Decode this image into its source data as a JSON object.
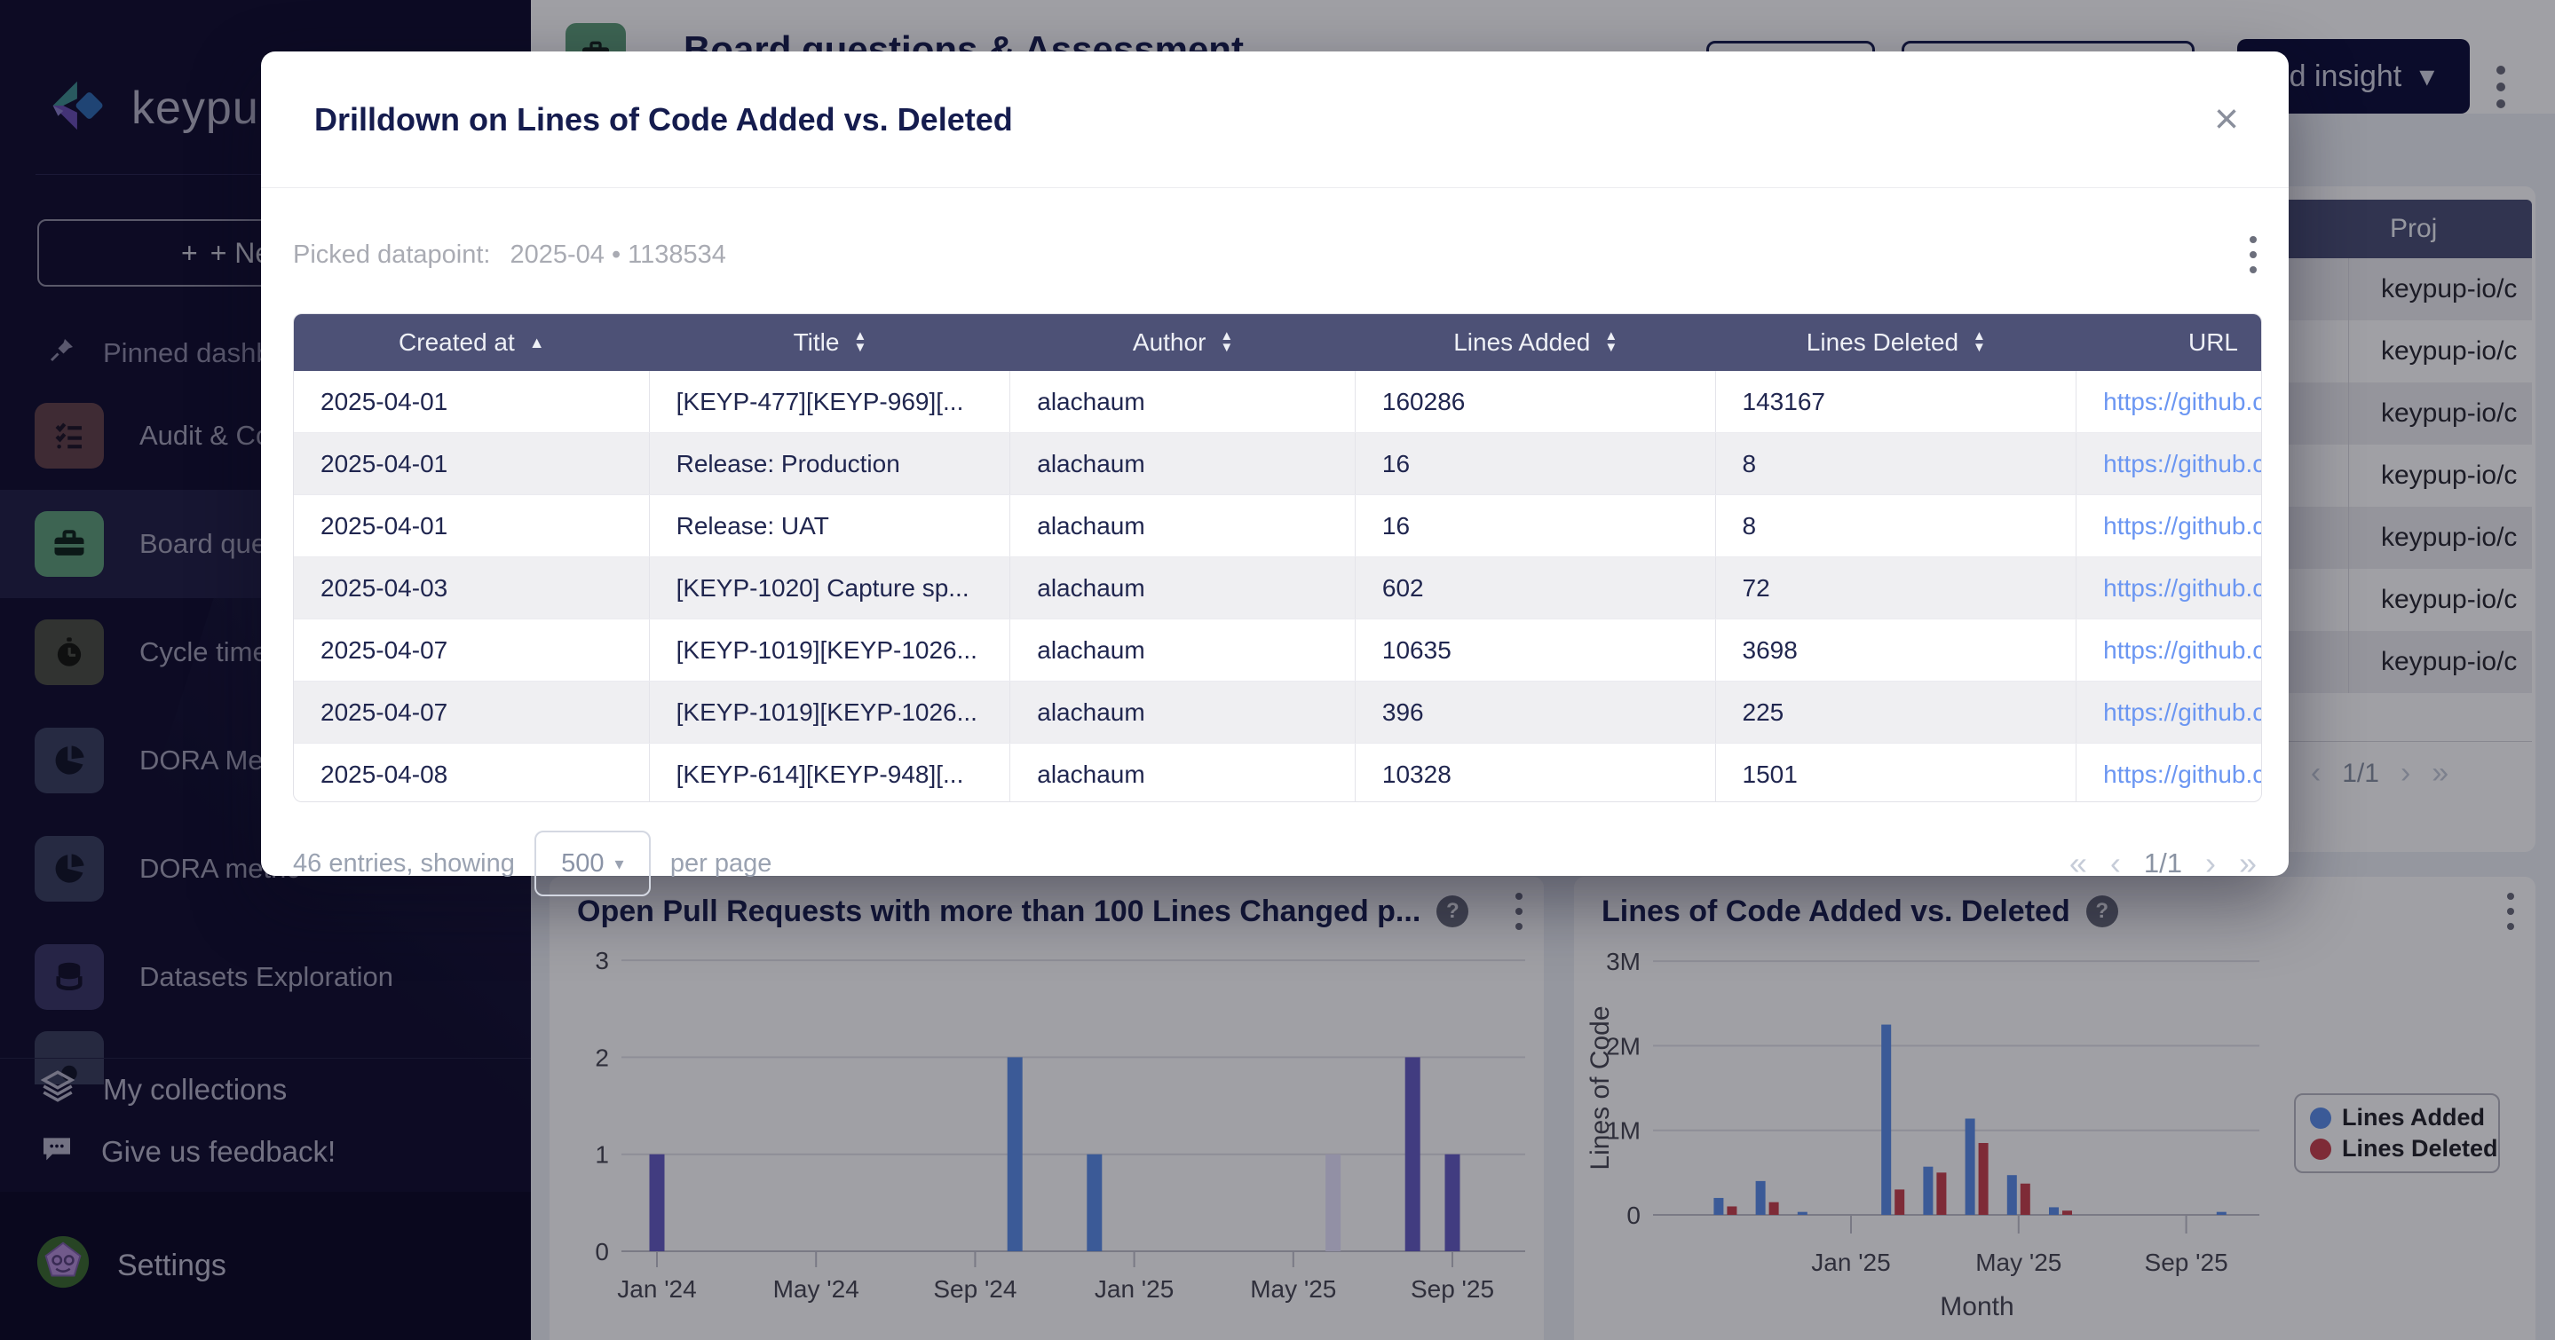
{
  "colors": {
    "accent_navy": "#10113a",
    "table_header": "#4d5176",
    "selected_green": "#5f9e79",
    "link_blue": "#6b96f2",
    "bar_indigo": "#675ec4",
    "bar_blue": "#5c8fe8",
    "bar_lavender": "#e8e5ff",
    "bar_red": "#c8434e"
  },
  "sidebar": {
    "logo_text": "keypup",
    "new_dashboard_label": "+ New d",
    "pinned_label": "Pinned dashboa",
    "items": [
      {
        "label": "Audit & Com",
        "icon": "checklist-icon",
        "icon_bg": "#63434a",
        "selected": false
      },
      {
        "label": "Board quest",
        "icon": "briefcase-icon",
        "icon_bg": "#5f9e79",
        "selected": true
      },
      {
        "label": "Cycle time d",
        "icon": "stopwatch-icon",
        "icon_bg": "#4c5045",
        "selected": false
      },
      {
        "label": "DORA Metric",
        "icon": "pie-icon",
        "icon_bg": "#3a4260",
        "selected": false
      },
      {
        "label": "DORA metric",
        "icon": "pie-icon",
        "icon_bg": "#3a4260",
        "selected": false
      },
      {
        "label": "Datasets Exploration",
        "icon": "database-icon",
        "icon_bg": "#3b3866",
        "selected": false
      },
      {
        "label": "",
        "icon": "dot-icon",
        "icon_bg": "#3a3f5c",
        "selected": false,
        "partial": true
      }
    ],
    "footer_items": [
      {
        "label": "My collections",
        "icon": "layers-icon"
      },
      {
        "label": "Give us feedback!",
        "icon": "speech-icon"
      }
    ],
    "settings_label": "Settings"
  },
  "header": {
    "title": "Board questions & Assessment",
    "add_insight_label": "dd insight",
    "add_insight_caret": "▾"
  },
  "background": {
    "project_table": {
      "header": "Proj",
      "rows": [
        "keypup-io/c",
        "keypup-io/c",
        "keypup-io/c",
        "keypup-io/c",
        "keypup-io/c",
        "keypup-io/c",
        "keypup-io/c"
      ],
      "pagination": {
        "first": "«",
        "prev": "‹",
        "page": "1/1",
        "next": "›",
        "last": "»"
      }
    }
  },
  "modal": {
    "title": "Drilldown on Lines of Code Added vs. Deleted",
    "close_glyph": "×",
    "picked_label": "Picked datapoint:",
    "picked_value": "2025-04 • 1138534",
    "table": {
      "columns": [
        {
          "label": "Created at",
          "sort": "asc"
        },
        {
          "label": "Title",
          "sort": "both"
        },
        {
          "label": "Author",
          "sort": "both"
        },
        {
          "label": "Lines Added",
          "sort": "both"
        },
        {
          "label": "Lines Deleted",
          "sort": "both"
        },
        {
          "label": "URL",
          "sort": "none"
        }
      ],
      "rows": [
        {
          "created": "2025-04-01",
          "title": "[KEYP-477][KEYP-969][...",
          "author": "alachaum",
          "added": "160286",
          "deleted": "143167",
          "url": "https://github.c"
        },
        {
          "created": "2025-04-01",
          "title": "Release: Production",
          "author": "alachaum",
          "added": "16",
          "deleted": "8",
          "url": "https://github.c"
        },
        {
          "created": "2025-04-01",
          "title": "Release: UAT",
          "author": "alachaum",
          "added": "16",
          "deleted": "8",
          "url": "https://github.c"
        },
        {
          "created": "2025-04-03",
          "title": "[KEYP-1020] Capture sp...",
          "author": "alachaum",
          "added": "602",
          "deleted": "72",
          "url": "https://github.c"
        },
        {
          "created": "2025-04-07",
          "title": "[KEYP-1019][KEYP-1026...",
          "author": "alachaum",
          "added": "10635",
          "deleted": "3698",
          "url": "https://github.c"
        },
        {
          "created": "2025-04-07",
          "title": "[KEYP-1019][KEYP-1026...",
          "author": "alachaum",
          "added": "396",
          "deleted": "225",
          "url": "https://github.c"
        },
        {
          "created": "2025-04-08",
          "title": "[KEYP-614][KEYP-948][...",
          "author": "alachaum",
          "added": "10328",
          "deleted": "1501",
          "url": "https://github.c"
        }
      ]
    },
    "footer": {
      "entries_text": "46 entries, showing",
      "page_size": "500",
      "per_page_text": "per page",
      "pagination": {
        "first": "«",
        "prev": "‹",
        "page": "1/1",
        "next": "›",
        "last": "»"
      }
    }
  },
  "chart_data": [
    {
      "type": "bar",
      "title": "Open Pull Requests with more than 100 Lines Changed p...",
      "xlabel": "",
      "ylabel": "",
      "ylim": [
        0,
        3
      ],
      "y_ticks": [
        0,
        1,
        2,
        3
      ],
      "x_ticks": [
        {
          "label": "Jan '24",
          "m": 0
        },
        {
          "label": "May '24",
          "m": 4
        },
        {
          "label": "Sep '24",
          "m": 8
        },
        {
          "label": "Jan '25",
          "m": 12
        },
        {
          "label": "May '25",
          "m": 16
        },
        {
          "label": "Sep '25",
          "m": 20
        }
      ],
      "bars": [
        {
          "month": "Jan '24",
          "m": 0,
          "value": 1,
          "color": "bar_indigo"
        },
        {
          "month": "Oct '24",
          "m": 9,
          "value": 2,
          "color": "bar_blue"
        },
        {
          "month": "Dec '24",
          "m": 11,
          "value": 1,
          "color": "bar_blue"
        },
        {
          "month": "Jun '25",
          "m": 17,
          "value": 1,
          "color": "bar_lavender"
        },
        {
          "month": "Aug '25",
          "m": 19,
          "value": 2,
          "color": "bar_indigo"
        },
        {
          "month": "Sep '25",
          "m": 20,
          "value": 1,
          "color": "bar_indigo"
        }
      ]
    },
    {
      "type": "bar",
      "title": "Lines of Code Added vs. Deleted",
      "xlabel": "Month",
      "ylabel": "Lines of Code",
      "ylim": [
        0,
        3000000
      ],
      "y_ticks": [
        {
          "label": "0",
          "v": 0
        },
        {
          "label": "1M",
          "v": 1000000
        },
        {
          "label": "2M",
          "v": 2000000
        },
        {
          "label": "3M",
          "v": 3000000
        }
      ],
      "x_ticks": [
        {
          "label": "Jan '25",
          "m": 12
        },
        {
          "label": "May '25",
          "m": 16
        },
        {
          "label": "Sep '25",
          "m": 20
        }
      ],
      "legend": [
        {
          "label": "Lines Added",
          "color": "bar_blue"
        },
        {
          "label": "Lines Deleted",
          "color": "bar_red"
        }
      ],
      "series": [
        {
          "name": "Lines Added",
          "color": "bar_blue",
          "points": [
            {
              "month": "Oct '24",
              "m": 9,
              "value": 200000
            },
            {
              "month": "Nov '24",
              "m": 10,
              "value": 400000
            },
            {
              "month": "Dec '24",
              "m": 11,
              "value": 35000
            },
            {
              "month": "Feb '25",
              "m": 13,
              "value": 2250000
            },
            {
              "month": "Mar '25",
              "m": 14,
              "value": 570000
            },
            {
              "month": "Apr '25",
              "m": 15,
              "value": 1138534
            },
            {
              "month": "May '25",
              "m": 16,
              "value": 470000
            },
            {
              "month": "Jun '25",
              "m": 17,
              "value": 90000
            },
            {
              "month": "Oct '25",
              "m": 21,
              "value": 35000
            }
          ]
        },
        {
          "name": "Lines Deleted",
          "color": "bar_red",
          "points": [
            {
              "month": "Oct '24",
              "m": 9,
              "value": 100000
            },
            {
              "month": "Nov '24",
              "m": 10,
              "value": 150000
            },
            {
              "month": "Feb '25",
              "m": 13,
              "value": 300000
            },
            {
              "month": "Mar '25",
              "m": 14,
              "value": 500000
            },
            {
              "month": "Apr '25",
              "m": 15,
              "value": 850000
            },
            {
              "month": "May '25",
              "m": 16,
              "value": 370000
            },
            {
              "month": "Jun '25",
              "m": 17,
              "value": 50000
            }
          ]
        }
      ]
    }
  ]
}
